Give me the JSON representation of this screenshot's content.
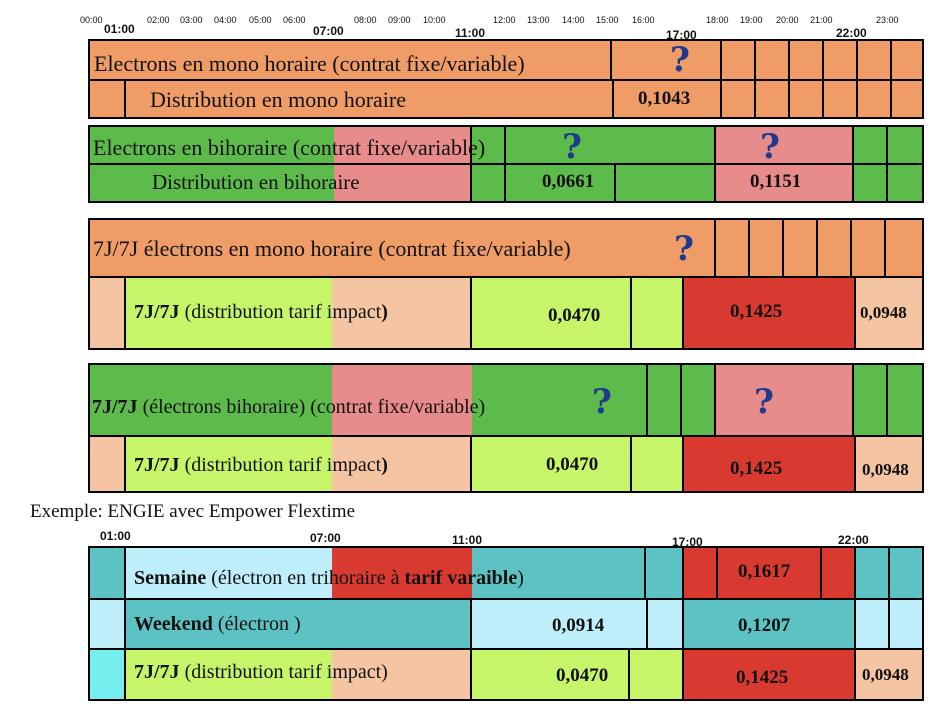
{
  "colors": {
    "orange": "#ef9c66",
    "green": "#5dbb4c",
    "pink": "#e88b8b",
    "lightgreen": "#c6f569",
    "peach": "#f5c4a2",
    "red": "#d93a2f",
    "teal": "#5dc2c4",
    "lightblue": "#bdeefa",
    "cyan": "#76eef0",
    "question": "#1f3a8c"
  },
  "hours_small": [
    "00:00",
    "02:00",
    "03:00",
    "04:00",
    "05:00",
    "06:00",
    "08:00",
    "09:00",
    "10:00",
    "12:00",
    "13:00",
    "14:00",
    "15:00",
    "16:00",
    "18:00",
    "19:00",
    "20:00",
    "21:00",
    "23:00"
  ],
  "hours_big": [
    "01:00",
    "07:00",
    "11:00",
    "17:00",
    "22:00"
  ],
  "question_mark": "?",
  "sections": {
    "mono": {
      "row1": "Electrons en mono horaire  (contrat fixe/variable)",
      "row2": "Distribution en mono horaire",
      "value": "0,1043"
    },
    "bi": {
      "row1": "Electrons en bihoraire  (contrat fixe/variable)",
      "row2": "Distribution en bihoraire",
      "value_day": "0,0661",
      "value_peak": "0,1151"
    },
    "mono7j": {
      "row1": "7J/7J électrons en mono horaire (contrat fixe/variable)",
      "row2_bold": "7J/7J",
      "row2_rest": " (distribution tarif impact",
      "row2_end": ")",
      "value_day": "0,0470",
      "value_peak": "0,1425",
      "value_night": "0,0948"
    },
    "bi7j": {
      "row1_bold": "7J/7J",
      "row1_rest": " (électrons bihoraire) (contrat fixe/variable)",
      "row2_bold": "7J/7J",
      "row2_rest": " (distribution tarif impact",
      "row2_end": ")",
      "value_day": "0,0470",
      "value_peak": "0,1425",
      "value_night": "0,0948"
    },
    "example_label": "Exemple: ENGIE avec Empower Flextime",
    "flex": {
      "row1_bold": "Semaine",
      "row1_rest": " (électron en trihoraire à ",
      "row1_bold2": "tarif varaible",
      "row1_end": ")",
      "row1_value": "0,1617",
      "row2_bold": "Weekend",
      "row2_rest": " (électron )",
      "row2_value_day": "0,0914",
      "row2_value_peak": "0,1207",
      "row3_bold": "7J/7J",
      "row3_rest": " (distribution tarif impact)",
      "value_day": "0,0470",
      "value_peak": "0,1425",
      "value_night": "0,0948"
    }
  }
}
